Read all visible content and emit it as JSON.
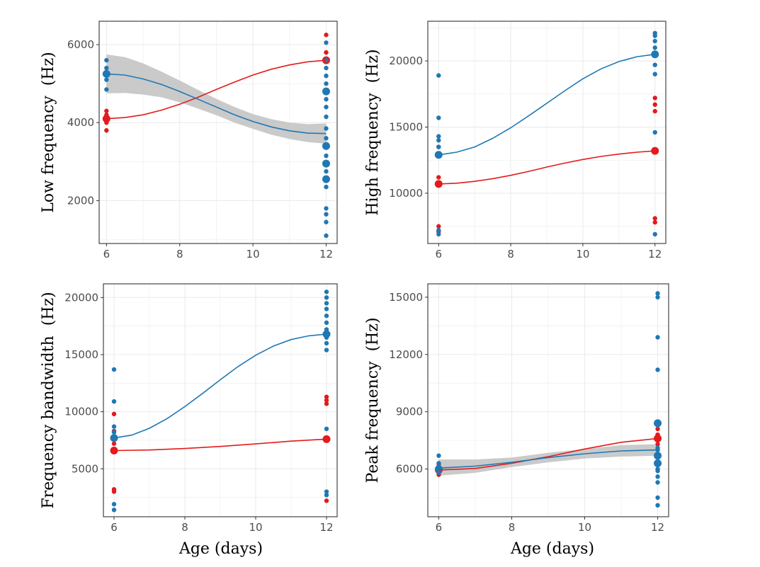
{
  "colors": {
    "red": "#e41a1c",
    "blue": "#1f78b4",
    "ribbon": "#bdbdbd",
    "grid": "#ebebeb",
    "axis": "#333333"
  },
  "chart_data": [
    {
      "type": "scatter",
      "title": "",
      "xlabel": "",
      "ylabel": "Low frequency  (Hz)",
      "xlim": [
        5.8,
        12.3
      ],
      "ylim": [
        900,
        6600
      ],
      "xticks": [
        6,
        8,
        10,
        12
      ],
      "yticks": [
        2000,
        4000,
        6000
      ],
      "ribbon_series": "blue",
      "series": [
        {
          "key": "red",
          "points": [
            [
              6,
              3800
            ],
            [
              6,
              4000
            ],
            [
              6,
              4200
            ],
            [
              6,
              4300
            ],
            [
              12,
              6250
            ],
            [
              12,
              5800
            ]
          ],
          "big_points": [
            [
              6,
              4100
            ],
            [
              12,
              5600
            ]
          ],
          "curve": [
            [
              6,
              4100
            ],
            [
              6.5,
              4130
            ],
            [
              7,
              4200
            ],
            [
              7.5,
              4320
            ],
            [
              8,
              4470
            ],
            [
              8.5,
              4650
            ],
            [
              9,
              4850
            ],
            [
              9.5,
              5040
            ],
            [
              10,
              5220
            ],
            [
              10.5,
              5370
            ],
            [
              11,
              5480
            ],
            [
              11.5,
              5560
            ],
            [
              12,
              5600
            ]
          ]
        },
        {
          "key": "blue",
          "points": [
            [
              6,
              4850
            ],
            [
              6,
              5100
            ],
            [
              6,
              5400
            ],
            [
              6,
              5600
            ],
            [
              12,
              1100
            ],
            [
              12,
              1450
            ],
            [
              12,
              1650
            ],
            [
              12,
              1800
            ],
            [
              12,
              2350
            ],
            [
              12,
              2750
            ],
            [
              12,
              3150
            ],
            [
              12,
              3600
            ],
            [
              12,
              3850
            ],
            [
              12,
              4150
            ],
            [
              12,
              4400
            ],
            [
              12,
              4600
            ],
            [
              12,
              5000
            ],
            [
              12,
              5200
            ],
            [
              12,
              5400
            ],
            [
              12,
              5600
            ],
            [
              12,
              6050
            ]
          ],
          "big_points": [
            [
              6,
              5250
            ],
            [
              12,
              4800
            ],
            [
              12,
              3400
            ],
            [
              12,
              2950
            ],
            [
              12,
              2550
            ]
          ],
          "curve": [
            [
              6,
              5250
            ],
            [
              6.5,
              5220
            ],
            [
              7,
              5120
            ],
            [
              7.5,
              4980
            ],
            [
              8,
              4800
            ],
            [
              8.5,
              4600
            ],
            [
              9,
              4400
            ],
            [
              9.5,
              4200
            ],
            [
              10,
              4030
            ],
            [
              10.5,
              3890
            ],
            [
              11,
              3790
            ],
            [
              11.5,
              3730
            ],
            [
              12,
              3720
            ]
          ],
          "ribbon_upper": [
            [
              6,
              5750
            ],
            [
              6.5,
              5680
            ],
            [
              7,
              5520
            ],
            [
              7.5,
              5310
            ],
            [
              8,
              5080
            ],
            [
              8.5,
              4840
            ],
            [
              9,
              4610
            ],
            [
              9.5,
              4400
            ],
            [
              10,
              4220
            ],
            [
              10.5,
              4090
            ],
            [
              11,
              4000
            ],
            [
              11.5,
              3960
            ],
            [
              12,
              3980
            ]
          ],
          "ribbon_lower": [
            [
              6,
              4750
            ],
            [
              6.5,
              4760
            ],
            [
              7,
              4720
            ],
            [
              7.5,
              4650
            ],
            [
              8,
              4520
            ],
            [
              8.5,
              4360
            ],
            [
              9,
              4190
            ],
            [
              9.5,
              4000
            ],
            [
              10,
              3840
            ],
            [
              10.5,
              3690
            ],
            [
              11,
              3580
            ],
            [
              11.5,
              3500
            ],
            [
              12,
              3460
            ]
          ]
        }
      ]
    },
    {
      "type": "scatter",
      "title": "",
      "xlabel": "",
      "ylabel": "High frequency  (Hz)",
      "xlim": [
        5.7,
        12.3
      ],
      "ylim": [
        6200,
        23000
      ],
      "xticks": [
        6,
        8,
        10,
        12
      ],
      "yticks": [
        10000,
        15000,
        20000
      ],
      "ribbon_series": "",
      "series": [
        {
          "key": "red",
          "points": [
            [
              6,
              7100
            ],
            [
              6,
              7500
            ],
            [
              6,
              11200
            ],
            [
              6,
              13000
            ],
            [
              6,
              13500
            ],
            [
              12,
              8100
            ],
            [
              12,
              7800
            ],
            [
              12,
              16200
            ],
            [
              12,
              16700
            ],
            [
              12,
              17200
            ]
          ],
          "big_points": [
            [
              6,
              10700
            ],
            [
              12,
              13200
            ]
          ],
          "curve": [
            [
              6,
              10700
            ],
            [
              6.5,
              10760
            ],
            [
              7,
              10900
            ],
            [
              7.5,
              11100
            ],
            [
              8,
              11350
            ],
            [
              8.5,
              11650
            ],
            [
              9,
              11980
            ],
            [
              9.5,
              12280
            ],
            [
              10,
              12550
            ],
            [
              10.5,
              12780
            ],
            [
              11,
              12960
            ],
            [
              11.5,
              13100
            ],
            [
              12,
              13200
            ]
          ]
        },
        {
          "key": "blue",
          "points": [
            [
              6,
              6900
            ],
            [
              6,
              7200
            ],
            [
              6,
              13500
            ],
            [
              6,
              14000
            ],
            [
              6,
              14300
            ],
            [
              6,
              15700
            ],
            [
              6,
              18900
            ],
            [
              12,
              6900
            ],
            [
              12,
              14600
            ],
            [
              12,
              19000
            ],
            [
              12,
              19700
            ],
            [
              12,
              21000
            ],
            [
              12,
              21500
            ],
            [
              12,
              21900
            ],
            [
              12,
              22100
            ]
          ],
          "big_points": [
            [
              6,
              12900
            ],
            [
              12,
              20500
            ]
          ],
          "curve": [
            [
              6,
              12900
            ],
            [
              6.5,
              13100
            ],
            [
              7,
              13500
            ],
            [
              7.5,
              14150
            ],
            [
              8,
              14950
            ],
            [
              8.5,
              15850
            ],
            [
              9,
              16800
            ],
            [
              9.5,
              17750
            ],
            [
              10,
              18650
            ],
            [
              10.5,
              19400
            ],
            [
              11,
              19950
            ],
            [
              11.5,
              20320
            ],
            [
              12,
              20500
            ]
          ]
        }
      ]
    },
    {
      "type": "scatter",
      "title": "",
      "xlabel": "Age (days)",
      "ylabel": "Frequency bandwidth  (Hz)",
      "xlim": [
        5.7,
        12.3
      ],
      "ylim": [
        800,
        21200
      ],
      "xticks": [
        6,
        8,
        10,
        12
      ],
      "yticks": [
        5000,
        10000,
        15000,
        20000
      ],
      "ribbon_series": "",
      "series": [
        {
          "key": "red",
          "points": [
            [
              6,
              3000
            ],
            [
              6,
              3200
            ],
            [
              6,
              7200
            ],
            [
              6,
              8300
            ],
            [
              6,
              9800
            ],
            [
              12,
              2200
            ],
            [
              12,
              10700
            ],
            [
              12,
              11000
            ],
            [
              12,
              11300
            ]
          ],
          "big_points": [
            [
              6,
              6600
            ],
            [
              12,
              7600
            ]
          ],
          "curve": [
            [
              6,
              6600
            ],
            [
              7,
              6650
            ],
            [
              8,
              6780
            ],
            [
              9,
              6960
            ],
            [
              10,
              7180
            ],
            [
              11,
              7420
            ],
            [
              12,
              7600
            ]
          ]
        },
        {
          "key": "blue",
          "points": [
            [
              6,
              1400
            ],
            [
              6,
              1900
            ],
            [
              6,
              8200
            ],
            [
              6,
              8700
            ],
            [
              6,
              10900
            ],
            [
              6,
              13700
            ],
            [
              12,
              2700
            ],
            [
              12,
              3000
            ],
            [
              12,
              8500
            ],
            [
              12,
              15400
            ],
            [
              12,
              16000
            ],
            [
              12,
              16500
            ],
            [
              12,
              17200
            ],
            [
              12,
              17800
            ],
            [
              12,
              18400
            ],
            [
              12,
              19000
            ],
            [
              12,
              19500
            ],
            [
              12,
              20000
            ],
            [
              12,
              20500
            ]
          ],
          "big_points": [
            [
              6,
              7700
            ],
            [
              12,
              16800
            ]
          ],
          "curve": [
            [
              6,
              7700
            ],
            [
              6.5,
              7950
            ],
            [
              7,
              8550
            ],
            [
              7.5,
              9400
            ],
            [
              8,
              10450
            ],
            [
              8.5,
              11600
            ],
            [
              9,
              12800
            ],
            [
              9.5,
              13950
            ],
            [
              10,
              14950
            ],
            [
              10.5,
              15750
            ],
            [
              11,
              16320
            ],
            [
              11.5,
              16650
            ],
            [
              12,
              16800
            ]
          ]
        }
      ]
    },
    {
      "type": "scatter",
      "title": "",
      "xlabel": "Age (days)",
      "ylabel": "Peak frequency  (Hz)",
      "xlim": [
        5.7,
        12.3
      ],
      "ylim": [
        3500,
        15700
      ],
      "xticks": [
        6,
        8,
        10,
        12
      ],
      "yticks": [
        6000,
        9000,
        12000,
        15000
      ],
      "ribbon_series": "blue",
      "series": [
        {
          "key": "red",
          "points": [
            [
              6,
              5700
            ],
            [
              6,
              5850
            ],
            [
              6,
              6250
            ],
            [
              12,
              7300
            ],
            [
              12,
              7800
            ],
            [
              12,
              8100
            ]
          ],
          "big_points": [
            [
              6,
              5950
            ],
            [
              12,
              7600
            ]
          ],
          "curve": [
            [
              6,
              5950
            ],
            [
              7,
              6030
            ],
            [
              8,
              6300
            ],
            [
              9,
              6650
            ],
            [
              10,
              7050
            ],
            [
              11,
              7400
            ],
            [
              12,
              7600
            ]
          ]
        },
        {
          "key": "blue",
          "points": [
            [
              6,
              5800
            ],
            [
              6,
              6300
            ],
            [
              6,
              6700
            ],
            [
              12,
              4100
            ],
            [
              12,
              4500
            ],
            [
              12,
              5300
            ],
            [
              12,
              5600
            ],
            [
              12,
              5900
            ],
            [
              12,
              6000
            ],
            [
              12,
              6400
            ],
            [
              12,
              6700
            ],
            [
              12,
              7000
            ],
            [
              12,
              7100
            ],
            [
              12,
              11200
            ],
            [
              12,
              12900
            ],
            [
              12,
              15000
            ],
            [
              12,
              15200
            ]
          ],
          "big_points": [
            [
              6,
              6000
            ],
            [
              12,
              8400
            ],
            [
              12,
              6700
            ],
            [
              12,
              6300
            ]
          ],
          "curve": [
            [
              6,
              6050
            ],
            [
              7,
              6150
            ],
            [
              8,
              6350
            ],
            [
              9,
              6600
            ],
            [
              10,
              6800
            ],
            [
              11,
              6950
            ],
            [
              12,
              7000
            ]
          ],
          "ribbon_upper": [
            [
              6,
              6500
            ],
            [
              7,
              6500
            ],
            [
              8,
              6600
            ],
            [
              9,
              6850
            ],
            [
              10,
              7050
            ],
            [
              11,
              7250
            ],
            [
              12,
              7300
            ]
          ],
          "ribbon_lower": [
            [
              6,
              5650
            ],
            [
              7,
              5800
            ],
            [
              8,
              6100
            ],
            [
              9,
              6350
            ],
            [
              10,
              6550
            ],
            [
              11,
              6650
            ],
            [
              12,
              6700
            ]
          ]
        }
      ]
    }
  ]
}
